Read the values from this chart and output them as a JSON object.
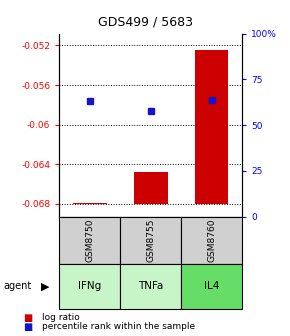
{
  "title": "GDS499 / 5683",
  "samples": [
    "GSM8750",
    "GSM8755",
    "GSM8760"
  ],
  "agents": [
    "IFNg",
    "TNFa",
    "IL4"
  ],
  "log_ratios": [
    -0.0679,
    -0.0648,
    -0.0525
  ],
  "percentile_ranks": [
    63,
    58,
    64
  ],
  "ylim_left": [
    -0.0693,
    -0.0508
  ],
  "ylim_right": [
    0,
    100
  ],
  "yticks_left": [
    -0.052,
    -0.056,
    -0.06,
    -0.064,
    -0.068
  ],
  "ytick_labels_left": [
    "-0.052",
    "-0.056",
    "-0.06",
    "-0.064",
    "-0.068"
  ],
  "yticks_right": [
    0,
    25,
    50,
    75,
    100
  ],
  "ytick_labels_right": [
    "0",
    "25",
    "50",
    "75",
    "100%"
  ],
  "bar_color": "#cc0000",
  "dot_color": "#1414cc",
  "agent_colors": [
    "#c8f5c8",
    "#c8f5c8",
    "#66dd66"
  ],
  "sample_bg_color": "#d0d0d0",
  "baseline": -0.068,
  "bar_width": 0.55
}
